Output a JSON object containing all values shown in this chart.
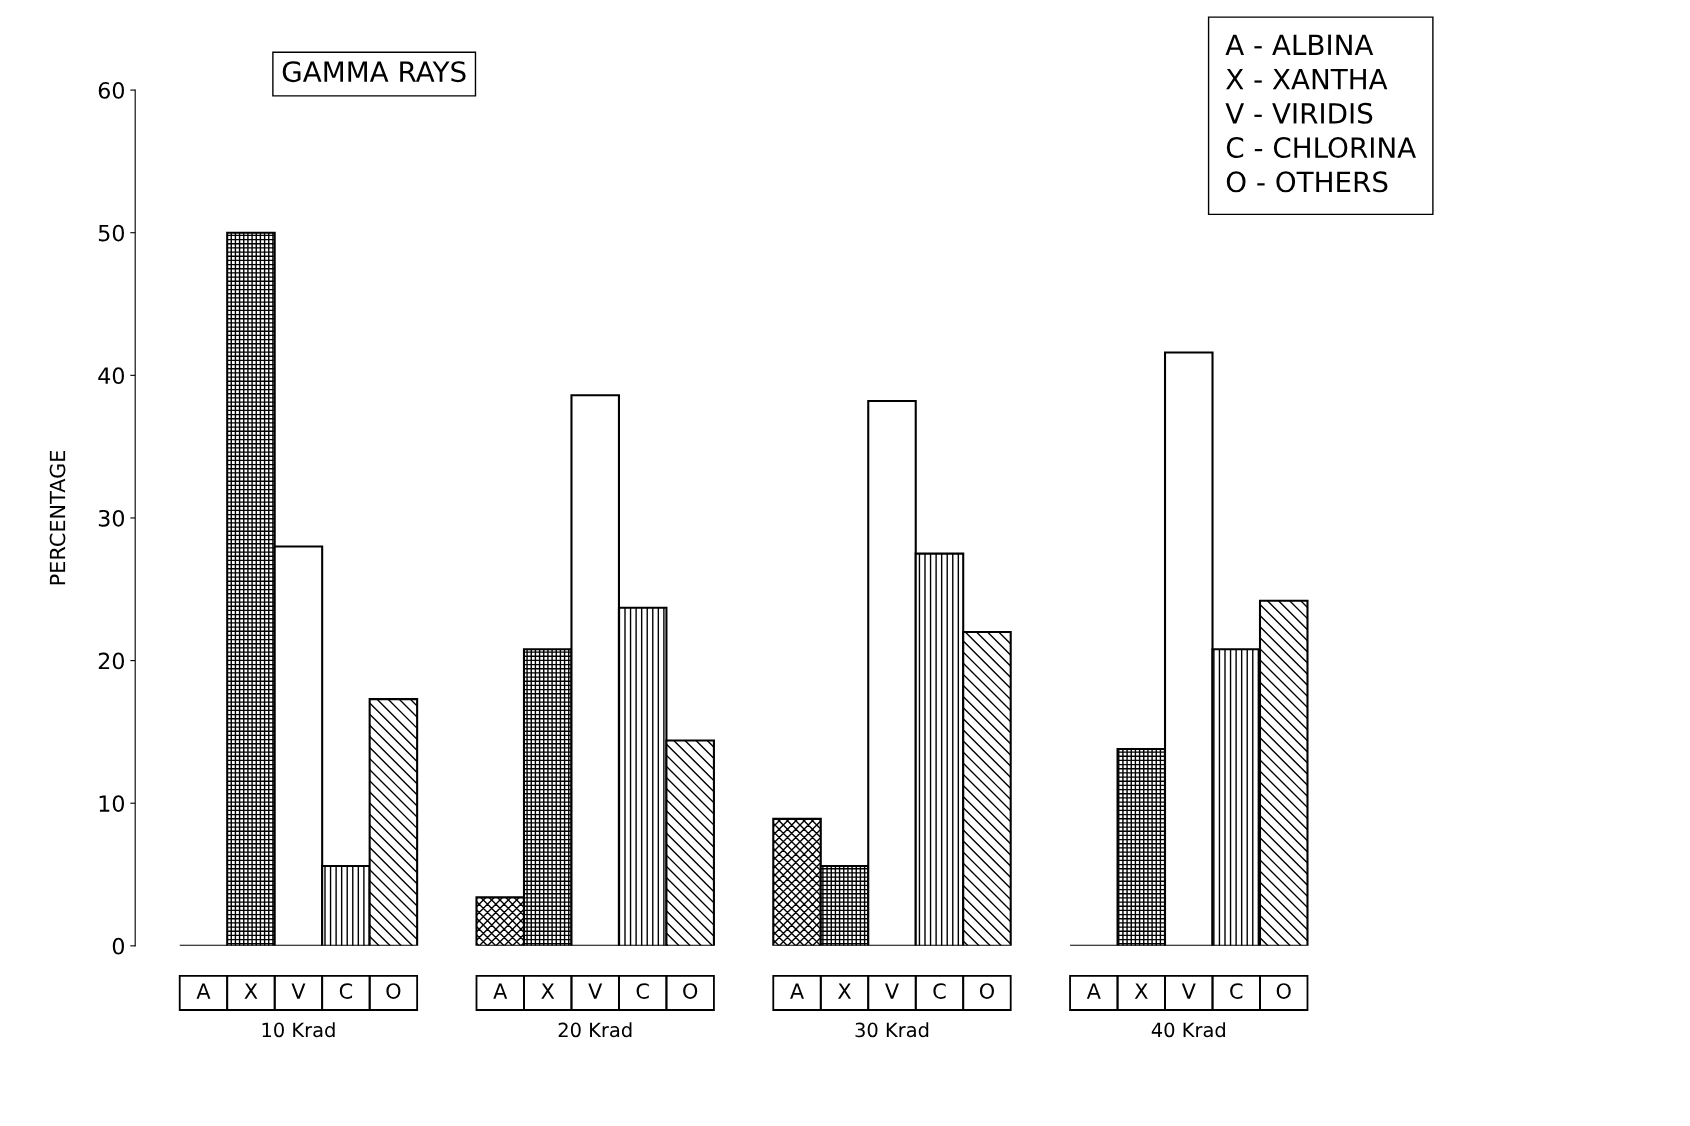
{
  "chart_data": {
    "type": "bar",
    "title": "GAMMA RAYS",
    "ylabel": "PERCENTAGE",
    "categories": [
      "10 Krad",
      "20 Krad",
      "30 Krad",
      "40 Krad"
    ],
    "series": [
      {
        "color": "#000000",
        "values": [
          0,
          3.4,
          8.9,
          0
        ]
      },
      {
        "color": "#000000",
        "values": [
          50,
          20.8,
          5.6,
          13.8
        ]
      },
      {
        "color": "#000000",
        "values": [
          28,
          38.6,
          38.2,
          41.6
        ]
      },
      {
        "color": "#000000",
        "values": [
          5.6,
          23.7,
          27.5,
          20.8
        ]
      },
      {
        "color": "#000000",
        "values": [
          17.3,
          14.4,
          22.0,
          24.2
        ]
      }
    ],
    "ylim": [
      0,
      60
    ],
    "yticks": [
      0,
      10,
      20,
      30,
      40,
      50,
      60
    ],
    "grid": false,
    "annotations": [
      "A - ALBINA",
      "X - XANTHA",
      "V - VIRIDIS",
      "C - CHLORINA",
      "O - OTHERS",
      "A",
      "X",
      "V",
      "C",
      "O",
      "A",
      "X",
      "V",
      "C",
      "O",
      "A",
      "X",
      "V",
      "C",
      "O",
      "A",
      "X",
      "V",
      "C",
      "O"
    ]
  }
}
